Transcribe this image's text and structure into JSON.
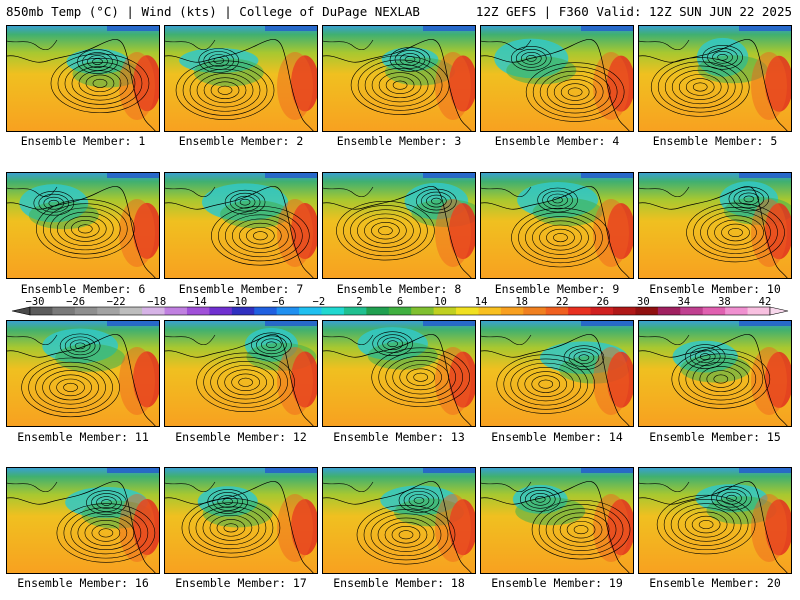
{
  "header": {
    "left": "850mb Temp (°C) | Wind (kts) | College of DuPage NEXLAB",
    "right": "12Z GEFS | F360 Valid: 12Z SUN JUN 22 2025"
  },
  "panels": [
    {
      "label": "Ensemble Member: 1"
    },
    {
      "label": "Ensemble Member: 2"
    },
    {
      "label": "Ensemble Member: 3"
    },
    {
      "label": "Ensemble Member: 4"
    },
    {
      "label": "Ensemble Member: 5"
    },
    {
      "label": "Ensemble Member: 6"
    },
    {
      "label": "Ensemble Member: 7"
    },
    {
      "label": "Ensemble Member: 8"
    },
    {
      "label": "Ensemble Member: 9"
    },
    {
      "label": "Ensemble Member: 10"
    },
    {
      "label": "Ensemble Member: 11"
    },
    {
      "label": "Ensemble Member: 12"
    },
    {
      "label": "Ensemble Member: 13"
    },
    {
      "label": "Ensemble Member: 14"
    },
    {
      "label": "Ensemble Member: 15"
    },
    {
      "label": "Ensemble Member: 16"
    },
    {
      "label": "Ensemble Member: 17"
    },
    {
      "label": "Ensemble Member: 18"
    },
    {
      "label": "Ensemble Member: 19"
    },
    {
      "label": "Ensemble Member: 20"
    }
  ],
  "colorbar": {
    "ticks": [
      "-30",
      "-26",
      "-22",
      "-18",
      "-14",
      "-10",
      "-6",
      "-2",
      "2",
      "6",
      "10",
      "14",
      "18",
      "22",
      "26",
      "30",
      "34",
      "38",
      "42"
    ],
    "colors": [
      "#5c5c5c",
      "#7a7a7a",
      "#8f8f8f",
      "#a3a3a3",
      "#bdbdbd",
      "#d6b3e6",
      "#c080e0",
      "#a050d8",
      "#7030d0",
      "#3030c0",
      "#2060e0",
      "#2090f0",
      "#20c0f0",
      "#20d8d0",
      "#20c090",
      "#20a050",
      "#40b040",
      "#80c030",
      "#c0d020",
      "#f0e020",
      "#f8c020",
      "#f8a020",
      "#f08020",
      "#f06020",
      "#e83020",
      "#d02020",
      "#b01818",
      "#901010",
      "#a02060",
      "#c04090",
      "#e060b0",
      "#f090d0",
      "#f8c0e0"
    ]
  }
}
